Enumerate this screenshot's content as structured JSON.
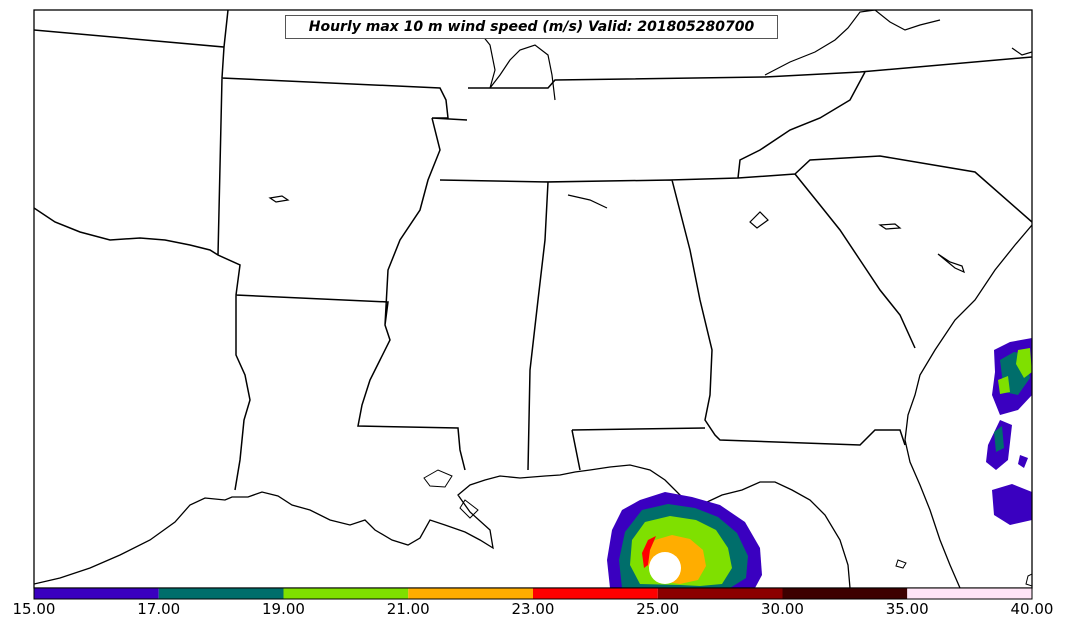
{
  "title": "Hourly max 10 m wind speed (m/s) Valid: 201805280700",
  "colorbar": {
    "ticks": [
      "15.00",
      "17.00",
      "19.00",
      "21.00",
      "23.00",
      "25.00",
      "30.00",
      "35.00",
      "40.00"
    ],
    "colors": [
      "#3a00c0",
      "#006e6b",
      "#7fe000",
      "#ffad00",
      "#ff0000",
      "#8b0000",
      "#3d0000",
      "#ffe4f6"
    ]
  },
  "wind_palette": {
    "c15": "#3a00c0",
    "c17": "#006e6b",
    "c19": "#7fe000",
    "c21": "#ffad00",
    "c23": "#ff0000"
  }
}
